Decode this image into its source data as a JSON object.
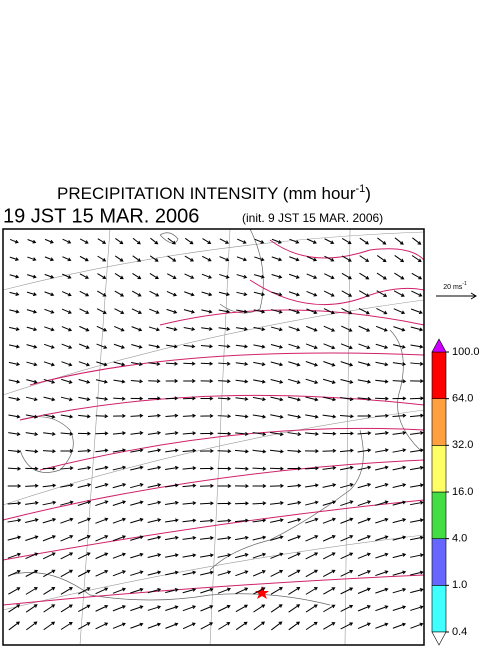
{
  "title": {
    "text": "PRECIPITATION INTENSITY (mm hour",
    "sup": "-1",
    "tail": ")"
  },
  "valid_time": "19 JST 15 MAR. 2006",
  "init_time": "(init. 9 JST 15 MAR. 2006)",
  "scale_arrow": {
    "text": "20 ms",
    "sup": "-1"
  },
  "colorbar": {
    "levels": [
      {
        "value": 0.4,
        "label": "0.4"
      },
      {
        "value": 1,
        "label": "1.0"
      },
      {
        "value": 4,
        "label": "4.0"
      },
      {
        "value": 16,
        "label": "16.0"
      },
      {
        "value": 32,
        "label": "32.0"
      },
      {
        "value": 64,
        "label": "64.0"
      },
      {
        "value": 100,
        "label": "100.0"
      }
    ],
    "colors": [
      "#40ffff",
      "#6666ff",
      "#44dd44",
      "#ffff66",
      "#ffa040",
      "#ff0000"
    ],
    "over_color": "#cc00ff",
    "under_color": "#ffffff"
  }
}
